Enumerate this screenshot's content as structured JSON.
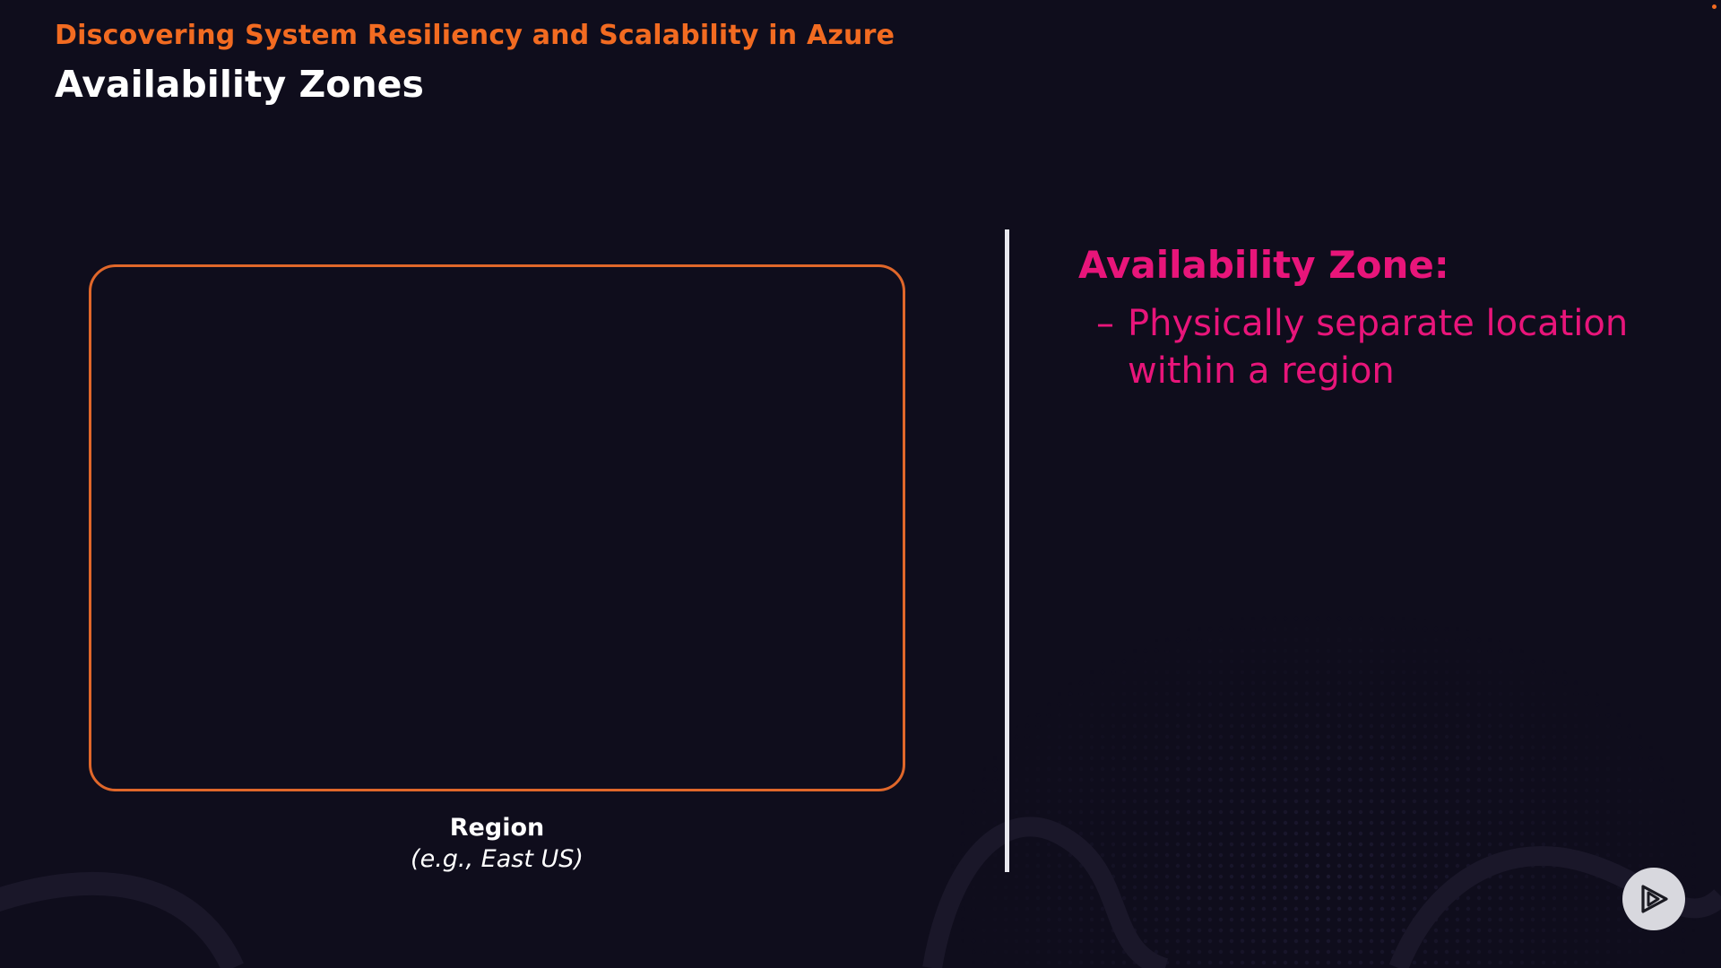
{
  "header": {
    "course_title": "Discovering System Resiliency and Scalability in Azure",
    "slide_title": "Availability Zones"
  },
  "diagram": {
    "region_label": "Region",
    "region_example": "(e.g., East US)"
  },
  "definition": {
    "heading": "Availability Zone:",
    "bullets": [
      "Physically separate location within a region"
    ],
    "bullet_marker": "–"
  },
  "controls": {
    "play_icon": "play-icon"
  },
  "colors": {
    "background": "#0f0d1c",
    "accent_orange": "#f26b21",
    "accent_pink": "#e8157a",
    "text_white": "#ffffff"
  }
}
